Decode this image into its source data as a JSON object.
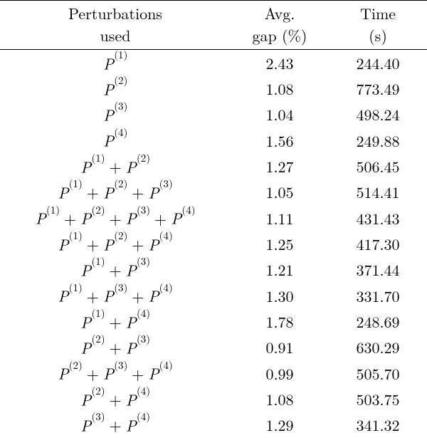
{
  "table": {
    "header": {
      "col1_l1": "Perturbations",
      "col1_l2": "used",
      "col2_l1": "Avg.",
      "col2_l2": "gap (%)",
      "col3_l1": "Time",
      "col3_l2": "(s)"
    },
    "P_symbol": "P",
    "plus_symbol": "+",
    "rows": [
      {
        "perts": [
          1
        ],
        "gap": "2.43",
        "time": "244.40"
      },
      {
        "perts": [
          2
        ],
        "gap": "1.08",
        "time": "773.49"
      },
      {
        "perts": [
          3
        ],
        "gap": "1.04",
        "time": "498.24"
      },
      {
        "perts": [
          4
        ],
        "gap": "1.56",
        "time": "249.88"
      },
      {
        "perts": [
          1,
          2
        ],
        "gap": "1.27",
        "time": "506.45"
      },
      {
        "perts": [
          1,
          2,
          3
        ],
        "gap": "1.05",
        "time": "514.41"
      },
      {
        "perts": [
          1,
          2,
          3,
          4
        ],
        "gap": "1.11",
        "time": "431.43"
      },
      {
        "perts": [
          1,
          2,
          4
        ],
        "gap": "1.25",
        "time": "417.30"
      },
      {
        "perts": [
          1,
          3
        ],
        "gap": "1.21",
        "time": "371.44"
      },
      {
        "perts": [
          1,
          3,
          4
        ],
        "gap": "1.30",
        "time": "331.70"
      },
      {
        "perts": [
          1,
          4
        ],
        "gap": "1.78",
        "time": "248.69"
      },
      {
        "perts": [
          2,
          3
        ],
        "gap": "0.91",
        "time": "630.29"
      },
      {
        "perts": [
          2,
          3,
          4
        ],
        "gap": "0.99",
        "time": "505.70"
      },
      {
        "perts": [
          2,
          4
        ],
        "gap": "1.08",
        "time": "503.75"
      },
      {
        "perts": [
          3,
          4
        ],
        "gap": "1.29",
        "time": "341.32"
      }
    ],
    "colors": {
      "text": "#000000",
      "background": "#ffffff",
      "rule": "#000000"
    },
    "fontsize_pt": 17
  }
}
